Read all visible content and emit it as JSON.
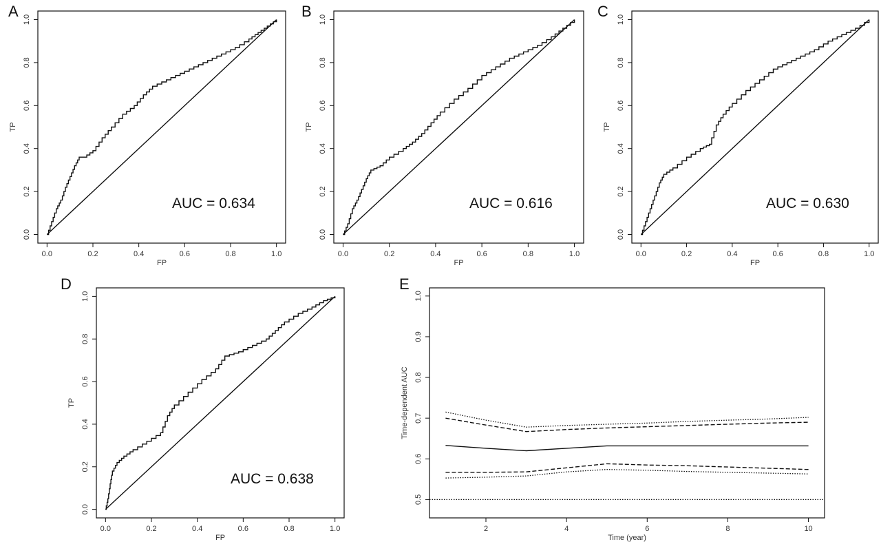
{
  "chart_data": [
    {
      "panel": "A",
      "type": "line",
      "xlabel": "FP",
      "ylabel": "TP",
      "xlim": [
        0,
        1
      ],
      "ylim": [
        0,
        1
      ],
      "xticks": [
        "0.0",
        "0.2",
        "0.4",
        "0.6",
        "0.8",
        "1.0"
      ],
      "yticks": [
        "0.0",
        "0.2",
        "0.4",
        "0.6",
        "0.8",
        "1.0"
      ],
      "annotation": "AUC = 0.634",
      "series": [
        {
          "style": "solid",
          "x": [
            0,
            0.02,
            0.04,
            0.06,
            0.08,
            0.1,
            0.12,
            0.14,
            0.16,
            0.2,
            0.24,
            0.28,
            0.33,
            0.38,
            0.42,
            0.46,
            0.52,
            0.58,
            0.64,
            0.7,
            0.76,
            0.82,
            0.88,
            0.92,
            0.96,
            1.0
          ],
          "y": [
            0,
            0.06,
            0.12,
            0.16,
            0.22,
            0.27,
            0.32,
            0.36,
            0.36,
            0.39,
            0.45,
            0.5,
            0.56,
            0.6,
            0.65,
            0.69,
            0.72,
            0.75,
            0.78,
            0.81,
            0.84,
            0.87,
            0.91,
            0.94,
            0.97,
            1.0
          ]
        },
        {
          "style": "solid",
          "x": [
            0,
            1
          ],
          "y": [
            0,
            1
          ]
        }
      ]
    },
    {
      "panel": "B",
      "type": "line",
      "xlabel": "FP",
      "ylabel": "TP",
      "xlim": [
        0,
        1
      ],
      "ylim": [
        0,
        1
      ],
      "xticks": [
        "0.0",
        "0.2",
        "0.4",
        "0.6",
        "0.8",
        "1.0"
      ],
      "yticks": [
        "0.0",
        "0.2",
        "0.4",
        "0.6",
        "0.8",
        "1.0"
      ],
      "annotation": "AUC = 0.616",
      "series": [
        {
          "style": "solid",
          "x": [
            0,
            0.02,
            0.04,
            0.06,
            0.08,
            0.1,
            0.12,
            0.16,
            0.2,
            0.26,
            0.3,
            0.34,
            0.38,
            0.42,
            0.48,
            0.54,
            0.6,
            0.66,
            0.72,
            0.78,
            0.84,
            0.9,
            0.95,
            1.0
          ],
          "y": [
            0,
            0.05,
            0.12,
            0.16,
            0.21,
            0.26,
            0.3,
            0.32,
            0.36,
            0.4,
            0.43,
            0.47,
            0.52,
            0.57,
            0.63,
            0.68,
            0.74,
            0.78,
            0.82,
            0.85,
            0.88,
            0.92,
            0.96,
            1.0
          ]
        },
        {
          "style": "solid",
          "x": [
            0,
            1
          ],
          "y": [
            0,
            1
          ]
        }
      ]
    },
    {
      "panel": "C",
      "type": "line",
      "xlabel": "FP",
      "ylabel": "TP",
      "xlim": [
        0,
        1
      ],
      "ylim": [
        0,
        1
      ],
      "xticks": [
        "0.0",
        "0.2",
        "0.4",
        "0.6",
        "0.8",
        "1.0"
      ],
      "yticks": [
        "0.0",
        "0.2",
        "0.4",
        "0.6",
        "0.8",
        "1.0"
      ],
      "annotation": "AUC = 0.630",
      "series": [
        {
          "style": "solid",
          "x": [
            0,
            0.02,
            0.04,
            0.06,
            0.08,
            0.1,
            0.14,
            0.2,
            0.26,
            0.3,
            0.33,
            0.36,
            0.4,
            0.46,
            0.52,
            0.58,
            0.64,
            0.7,
            0.76,
            0.82,
            0.88,
            0.94,
            1.0
          ],
          "y": [
            0,
            0.06,
            0.12,
            0.18,
            0.24,
            0.28,
            0.31,
            0.36,
            0.4,
            0.42,
            0.51,
            0.56,
            0.61,
            0.67,
            0.72,
            0.77,
            0.8,
            0.83,
            0.86,
            0.9,
            0.93,
            0.96,
            1.0
          ]
        },
        {
          "style": "solid",
          "x": [
            0,
            1
          ],
          "y": [
            0,
            1
          ]
        }
      ]
    },
    {
      "panel": "D",
      "type": "line",
      "xlabel": "FP",
      "ylabel": "TP",
      "xlim": [
        0,
        1
      ],
      "ylim": [
        0,
        1
      ],
      "xticks": [
        "0.0",
        "0.2",
        "0.4",
        "0.6",
        "0.8",
        "1.0"
      ],
      "yticks": [
        "0.0",
        "0.2",
        "0.4",
        "0.6",
        "0.8",
        "1.0"
      ],
      "annotation": "AUC = 0.638",
      "series": [
        {
          "style": "solid",
          "x": [
            0,
            0.01,
            0.02,
            0.03,
            0.05,
            0.08,
            0.12,
            0.18,
            0.24,
            0.27,
            0.3,
            0.36,
            0.42,
            0.48,
            0.52,
            0.58,
            0.64,
            0.7,
            0.74,
            0.78,
            0.84,
            0.9,
            0.95,
            1.0
          ],
          "y": [
            0,
            0.05,
            0.12,
            0.18,
            0.22,
            0.25,
            0.28,
            0.32,
            0.36,
            0.44,
            0.49,
            0.55,
            0.61,
            0.66,
            0.72,
            0.74,
            0.77,
            0.8,
            0.84,
            0.88,
            0.92,
            0.95,
            0.98,
            1.0
          ]
        },
        {
          "style": "solid",
          "x": [
            0,
            1
          ],
          "y": [
            0,
            1
          ]
        }
      ]
    },
    {
      "panel": "E",
      "type": "line",
      "xlabel": "Time (year)",
      "ylabel": "Time-dependent AUC",
      "xlim": [
        0.6,
        10.4
      ],
      "ylim": [
        0.45,
        1.0
      ],
      "xticks": [
        "2",
        "4",
        "6",
        "8",
        "10"
      ],
      "xtick_values": [
        2,
        4,
        6,
        8,
        10
      ],
      "yticks": [
        "0.5",
        "0.6",
        "0.7",
        "0.8",
        "0.9",
        "1.0"
      ],
      "ytick_values": [
        0.5,
        0.6,
        0.7,
        0.8,
        0.9,
        1.0
      ],
      "series": [
        {
          "style": "dotted",
          "x": [
            1,
            2,
            3,
            4,
            5,
            6,
            7,
            8,
            9,
            10
          ],
          "y": [
            0.715,
            0.695,
            0.678,
            0.682,
            0.685,
            0.688,
            0.692,
            0.695,
            0.698,
            0.702
          ]
        },
        {
          "style": "dashed",
          "x": [
            1,
            2,
            3,
            4,
            5,
            6,
            7,
            8,
            9,
            10
          ],
          "y": [
            0.7,
            0.683,
            0.667,
            0.672,
            0.676,
            0.679,
            0.682,
            0.685,
            0.688,
            0.69
          ]
        },
        {
          "style": "solid",
          "x": [
            1,
            2,
            3,
            4,
            5,
            6,
            7,
            8,
            9,
            10
          ],
          "y": [
            0.633,
            0.626,
            0.62,
            0.626,
            0.632,
            0.632,
            0.632,
            0.632,
            0.632,
            0.632
          ]
        },
        {
          "style": "dashed",
          "x": [
            1,
            2,
            3,
            4,
            5,
            6,
            7,
            8,
            9,
            10
          ],
          "y": [
            0.567,
            0.567,
            0.568,
            0.578,
            0.588,
            0.585,
            0.583,
            0.58,
            0.577,
            0.574
          ]
        },
        {
          "style": "dotted",
          "x": [
            1,
            2,
            3,
            4,
            5,
            6,
            7,
            8,
            9,
            10
          ],
          "y": [
            0.553,
            0.555,
            0.558,
            0.568,
            0.574,
            0.572,
            0.569,
            0.567,
            0.565,
            0.563
          ]
        },
        {
          "style": "dotted",
          "x": [
            0.6,
            10.4
          ],
          "y": [
            0.5,
            0.5
          ]
        }
      ]
    }
  ]
}
